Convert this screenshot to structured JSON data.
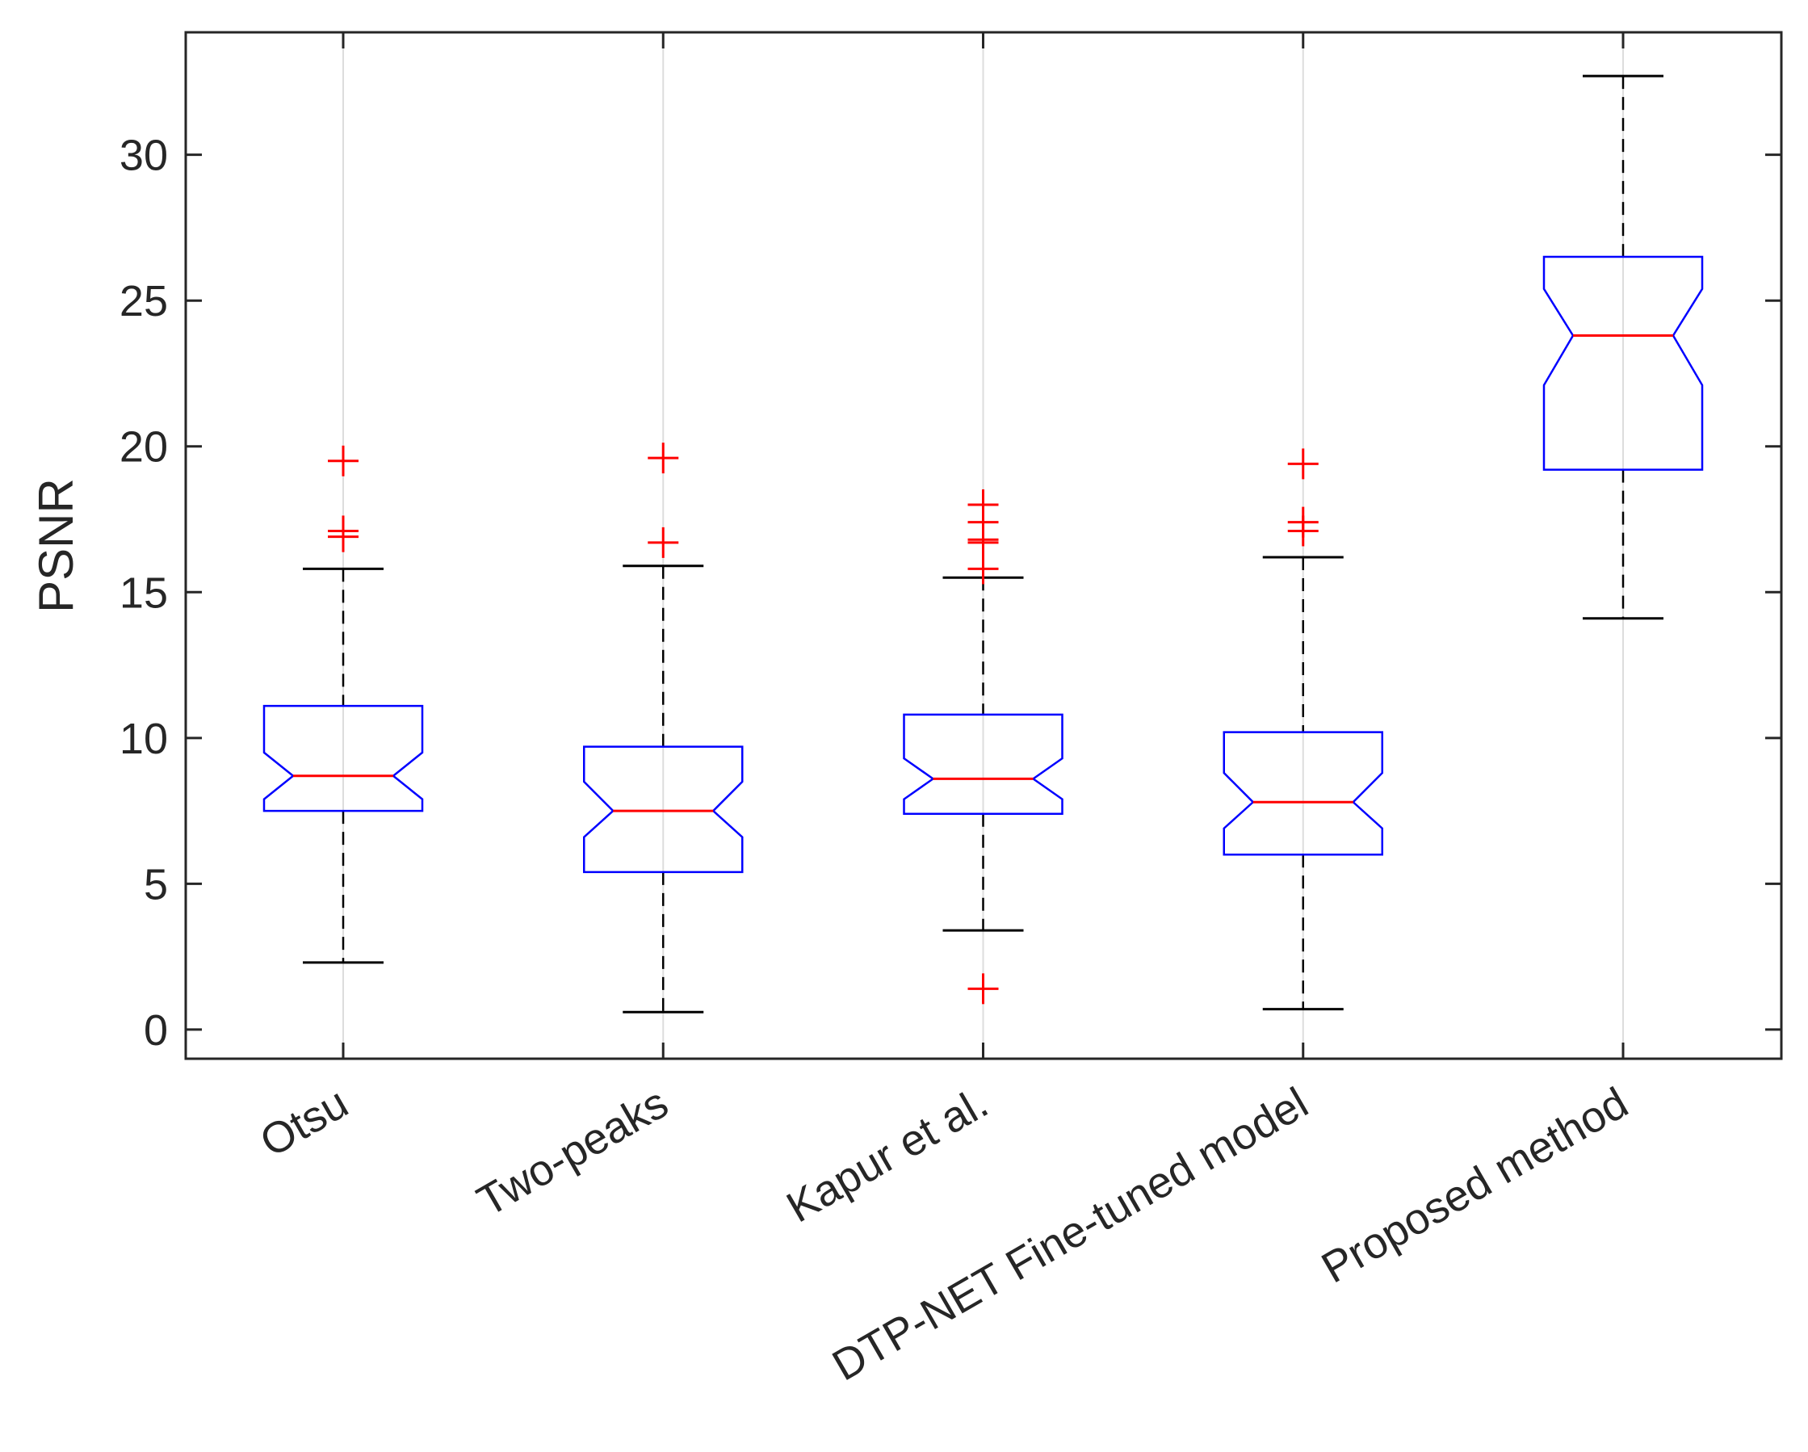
{
  "chart_data": {
    "type": "boxplot",
    "title": "",
    "xlabel": "",
    "ylabel": "PSNR",
    "ylim": [
      -1,
      34.2
    ],
    "yticks": [
      0,
      5,
      10,
      15,
      20,
      25,
      30
    ],
    "ytick_labels": [
      "0",
      "5",
      "10",
      "15",
      "20",
      "25",
      "30"
    ],
    "grid": "x",
    "notched": true,
    "colors": {
      "box": "#0000ff",
      "median": "#ff0000",
      "whisker": "#000000",
      "outlier": "#ff0000",
      "grid": "#dddddd",
      "axis": "#262626"
    },
    "categories": [
      "Otsu",
      "Two-peaks",
      "Kapur et al.",
      "DTP-NET Fine-tuned model",
      "Proposed method"
    ],
    "boxes": [
      {
        "q1": 7.5,
        "median": 8.7,
        "q3": 11.1,
        "notch_low": 7.9,
        "notch_high": 9.5,
        "whisker_low": 2.3,
        "whisker_high": 15.8,
        "outliers": [
          16.9,
          17.1,
          19.5
        ]
      },
      {
        "q1": 5.4,
        "median": 7.5,
        "q3": 9.7,
        "notch_low": 6.6,
        "notch_high": 8.5,
        "whisker_low": 0.6,
        "whisker_high": 15.9,
        "outliers": [
          16.7,
          19.6
        ]
      },
      {
        "q1": 7.4,
        "median": 8.6,
        "q3": 10.8,
        "notch_low": 7.9,
        "notch_high": 9.3,
        "whisker_low": 3.4,
        "whisker_high": 15.5,
        "outliers": [
          1.4,
          15.8,
          16.7,
          16.8,
          17.4,
          18.0
        ]
      },
      {
        "q1": 6.0,
        "median": 7.8,
        "q3": 10.2,
        "notch_low": 6.9,
        "notch_high": 8.8,
        "whisker_low": 0.7,
        "whisker_high": 16.2,
        "outliers": [
          17.1,
          17.4,
          19.4
        ]
      },
      {
        "q1": 19.2,
        "median": 23.8,
        "q3": 26.5,
        "notch_low": 22.1,
        "notch_high": 25.4,
        "whisker_low": 14.1,
        "whisker_high": 32.7,
        "outliers": []
      }
    ]
  }
}
